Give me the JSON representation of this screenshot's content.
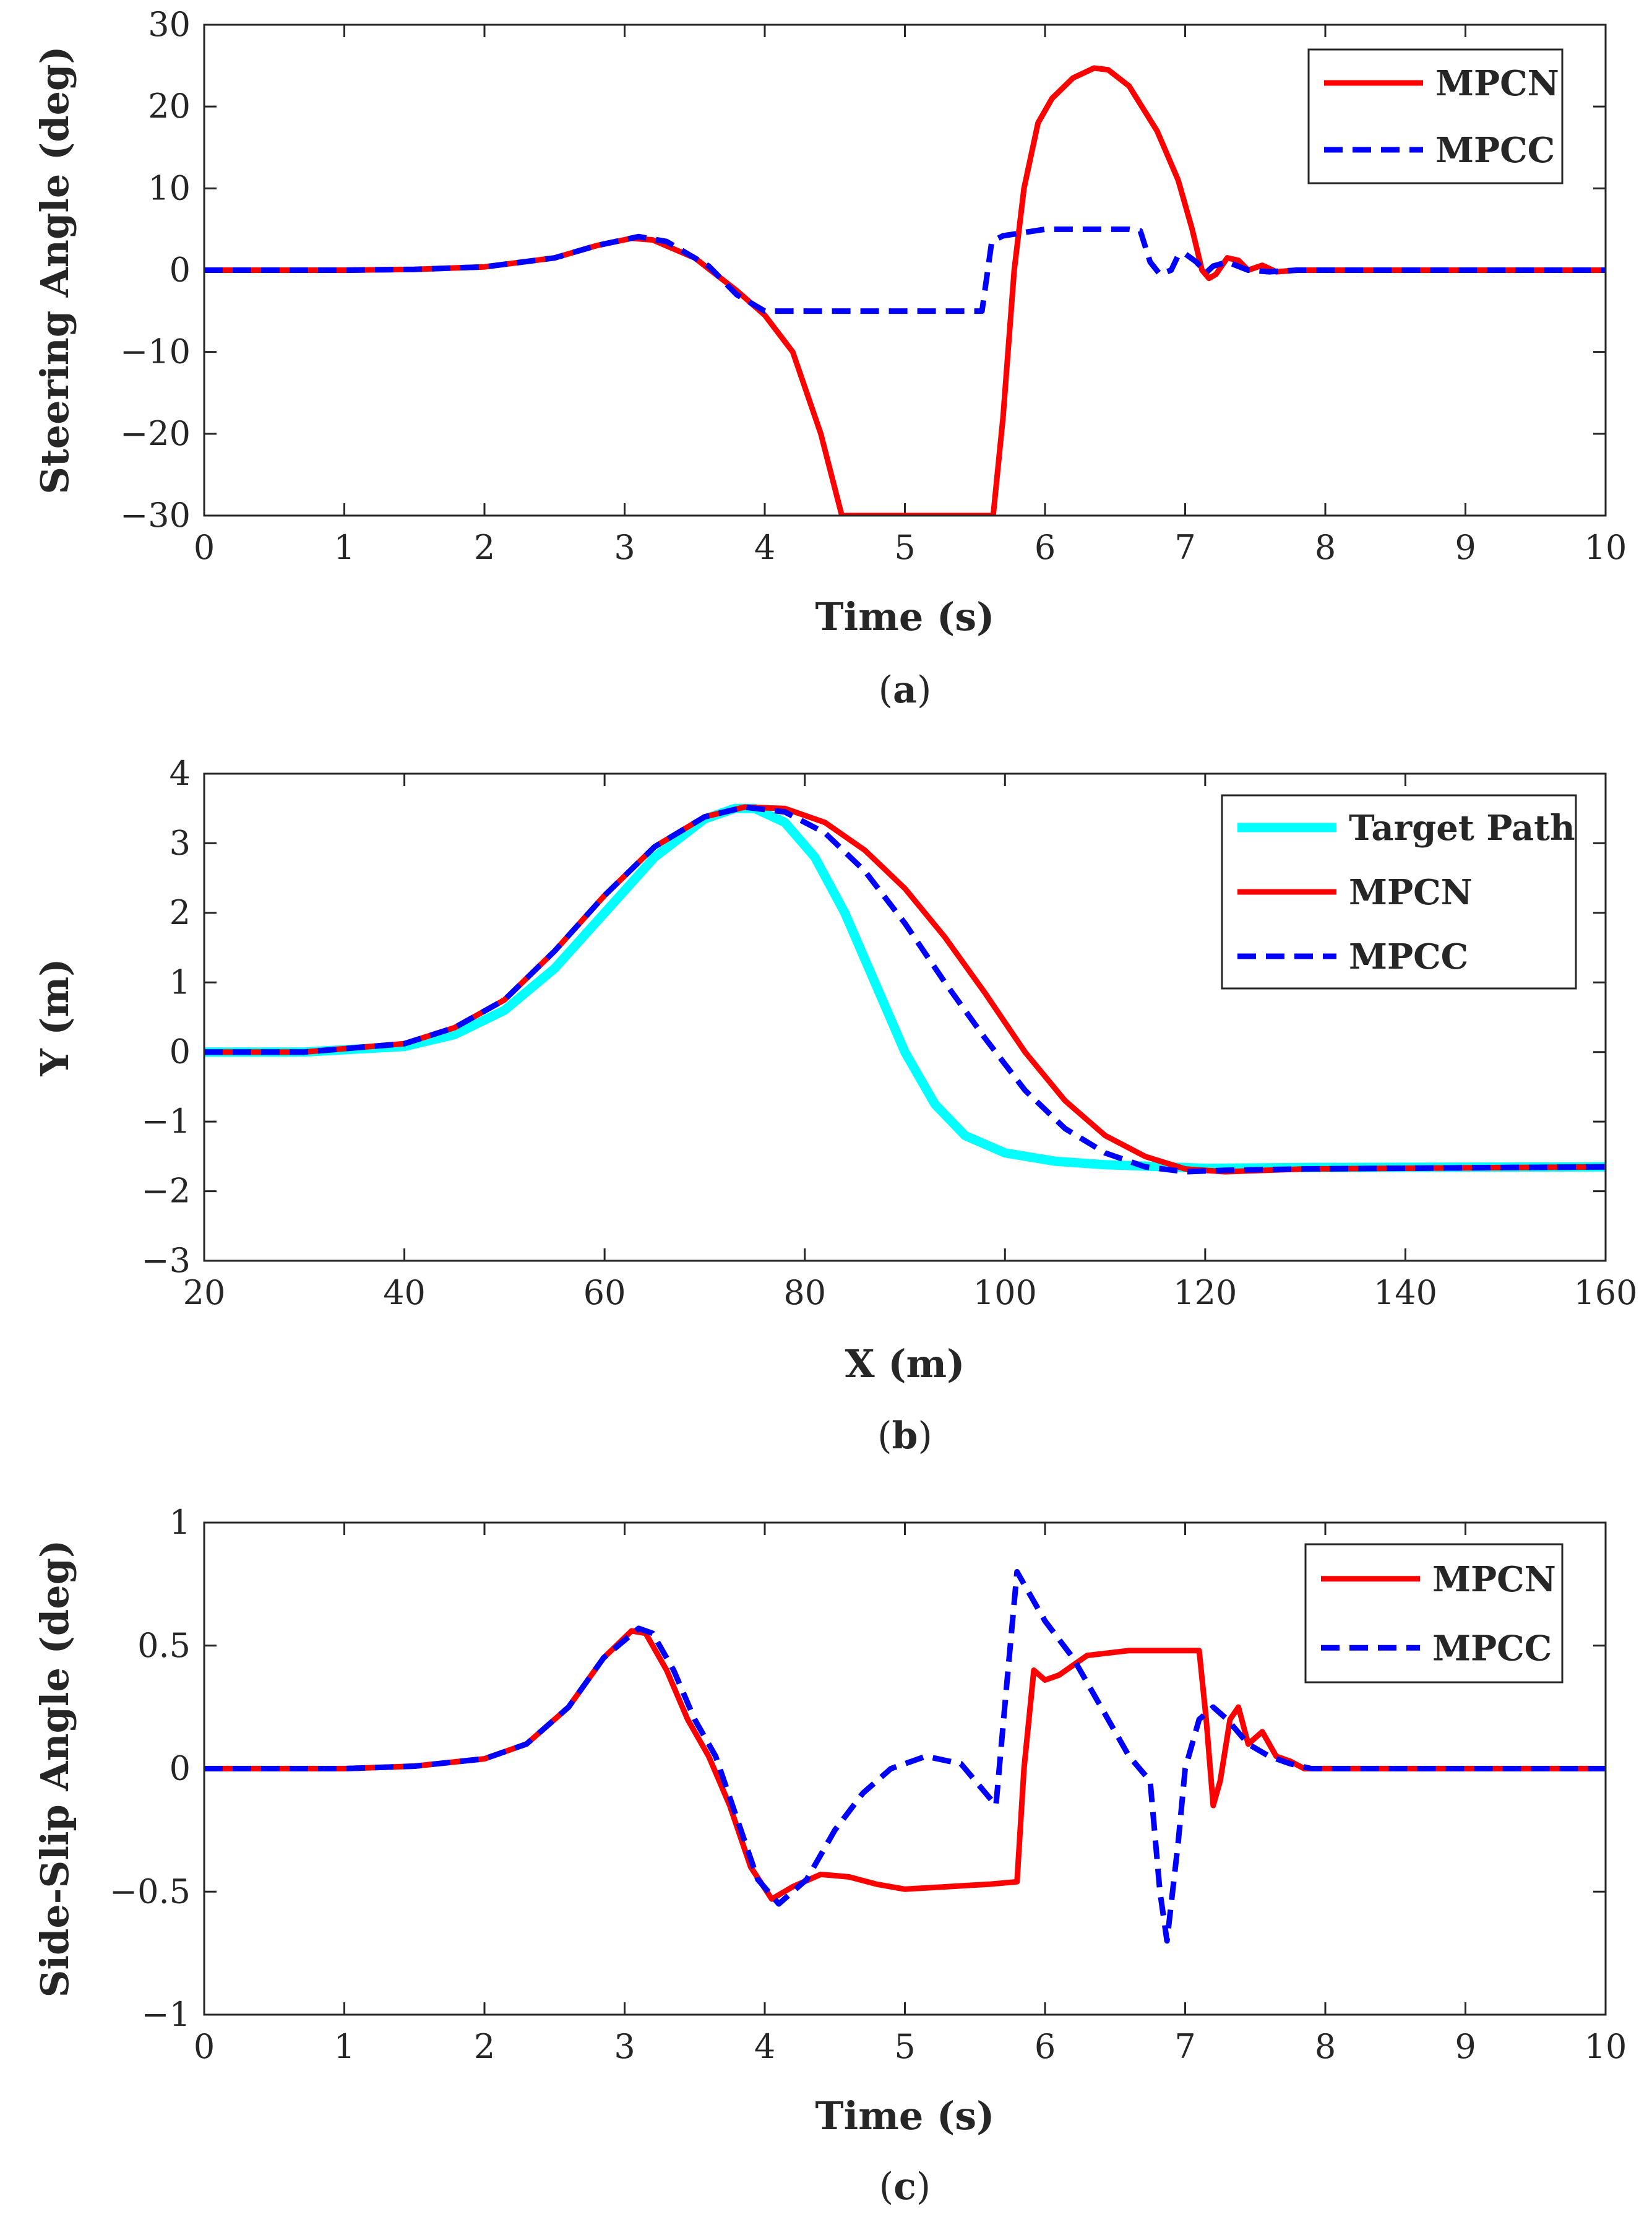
{
  "colors": {
    "MPCN": "#ff0000",
    "MPCC": "#0000ff",
    "Target Path": "#00ffff",
    "axis": "#262626"
  },
  "chart_data": [
    {
      "type": "line",
      "caption": "(a)",
      "caption_letter": "a",
      "xlabel": "Time (s)",
      "ylabel": "Steering Angle (deg)",
      "xlim": [
        0,
        10
      ],
      "ylim": [
        -30,
        30
      ],
      "xticks": [
        "0",
        "1",
        "2",
        "3",
        "4",
        "5",
        "6",
        "7",
        "8",
        "9",
        "10"
      ],
      "yticks": [
        "−30",
        "−20",
        "−10",
        "0",
        "10",
        "20",
        "30"
      ],
      "legend_position": "top-right",
      "grid": false,
      "series": [
        {
          "name": "MPCN",
          "style": "solid",
          "points": [
            [
              0,
              0
            ],
            [
              1,
              0
            ],
            [
              1.5,
              0.1
            ],
            [
              2,
              0.4
            ],
            [
              2.5,
              1.5
            ],
            [
              2.8,
              3
            ],
            [
              3.05,
              3.9
            ],
            [
              3.2,
              3.7
            ],
            [
              3.5,
              1.5
            ],
            [
              3.8,
              -2.5
            ],
            [
              4,
              -5.5
            ],
            [
              4.2,
              -10
            ],
            [
              4.4,
              -20
            ],
            [
              4.55,
              -30
            ],
            [
              5,
              -30
            ],
            [
              5.63,
              -30
            ],
            [
              5.7,
              -18
            ],
            [
              5.78,
              0
            ],
            [
              5.85,
              10
            ],
            [
              5.95,
              18
            ],
            [
              6.05,
              21
            ],
            [
              6.2,
              23.5
            ],
            [
              6.35,
              24.7
            ],
            [
              6.45,
              24.5
            ],
            [
              6.6,
              22.5
            ],
            [
              6.8,
              17
            ],
            [
              6.95,
              11
            ],
            [
              7.05,
              5
            ],
            [
              7.12,
              0
            ],
            [
              7.17,
              -1
            ],
            [
              7.22,
              -0.5
            ],
            [
              7.3,
              1.5
            ],
            [
              7.38,
              1.2
            ],
            [
              7.45,
              0
            ],
            [
              7.55,
              0.6
            ],
            [
              7.65,
              -0.2
            ],
            [
              7.8,
              0
            ],
            [
              10,
              0
            ]
          ]
        },
        {
          "name": "MPCC",
          "style": "dashed",
          "points": [
            [
              0,
              0
            ],
            [
              1,
              0
            ],
            [
              1.5,
              0.1
            ],
            [
              2,
              0.4
            ],
            [
              2.5,
              1.5
            ],
            [
              2.8,
              3
            ],
            [
              3.1,
              4.1
            ],
            [
              3.3,
              3.5
            ],
            [
              3.6,
              0.5
            ],
            [
              3.8,
              -3
            ],
            [
              4,
              -5
            ],
            [
              4.5,
              -5
            ],
            [
              5,
              -5
            ],
            [
              5.55,
              -5
            ],
            [
              5.62,
              3.5
            ],
            [
              5.7,
              4.2
            ],
            [
              6,
              5
            ],
            [
              6.6,
              5
            ],
            [
              6.68,
              4.8
            ],
            [
              6.75,
              1
            ],
            [
              6.82,
              -0.5
            ],
            [
              6.9,
              0
            ],
            [
              6.95,
              1.8
            ],
            [
              7.0,
              2
            ],
            [
              7.08,
              1
            ],
            [
              7.15,
              -0.3
            ],
            [
              7.2,
              0.5
            ],
            [
              7.3,
              1
            ],
            [
              7.45,
              0
            ],
            [
              7.6,
              -0.2
            ],
            [
              7.8,
              0
            ],
            [
              10,
              0
            ]
          ]
        }
      ]
    },
    {
      "type": "line",
      "caption": "(b)",
      "caption_letter": "b",
      "xlabel": "X (m)",
      "ylabel": "Y (m)",
      "xlim": [
        20,
        160
      ],
      "ylim": [
        -3,
        4
      ],
      "xticks": [
        "20",
        "40",
        "60",
        "80",
        "100",
        "120",
        "140",
        "160"
      ],
      "yticks": [
        "−3",
        "−2",
        "−1",
        "0",
        "1",
        "2",
        "3",
        "4"
      ],
      "legend_position": "top-right",
      "grid": false,
      "series": [
        {
          "name": "Target Path",
          "style": "solid",
          "points": [
            [
              20,
              0
            ],
            [
              30,
              0
            ],
            [
              40,
              0.08
            ],
            [
              45,
              0.25
            ],
            [
              50,
              0.6
            ],
            [
              55,
              1.2
            ],
            [
              60,
              2
            ],
            [
              65,
              2.8
            ],
            [
              70,
              3.35
            ],
            [
              73,
              3.5
            ],
            [
              75,
              3.5
            ],
            [
              78,
              3.3
            ],
            [
              81,
              2.8
            ],
            [
              84,
              2
            ],
            [
              87,
              1
            ],
            [
              90,
              0
            ],
            [
              93,
              -0.75
            ],
            [
              96,
              -1.2
            ],
            [
              100,
              -1.45
            ],
            [
              105,
              -1.57
            ],
            [
              110,
              -1.62
            ],
            [
              120,
              -1.67
            ],
            [
              130,
              -1.66
            ],
            [
              160,
              -1.65
            ]
          ]
        },
        {
          "name": "MPCN",
          "style": "solid",
          "points": [
            [
              20,
              0
            ],
            [
              30,
              0
            ],
            [
              40,
              0.12
            ],
            [
              45,
              0.35
            ],
            [
              50,
              0.75
            ],
            [
              55,
              1.45
            ],
            [
              60,
              2.25
            ],
            [
              65,
              2.95
            ],
            [
              70,
              3.38
            ],
            [
              74,
              3.52
            ],
            [
              78,
              3.5
            ],
            [
              82,
              3.3
            ],
            [
              86,
              2.9
            ],
            [
              90,
              2.35
            ],
            [
              94,
              1.65
            ],
            [
              98,
              0.85
            ],
            [
              102,
              0
            ],
            [
              106,
              -0.7
            ],
            [
              110,
              -1.2
            ],
            [
              114,
              -1.5
            ],
            [
              118,
              -1.68
            ],
            [
              122,
              -1.72
            ],
            [
              130,
              -1.68
            ],
            [
              160,
              -1.65
            ]
          ]
        },
        {
          "name": "MPCC",
          "style": "dashed",
          "points": [
            [
              20,
              0
            ],
            [
              30,
              0
            ],
            [
              40,
              0.12
            ],
            [
              45,
              0.35
            ],
            [
              50,
              0.75
            ],
            [
              55,
              1.45
            ],
            [
              60,
              2.25
            ],
            [
              65,
              2.95
            ],
            [
              70,
              3.38
            ],
            [
              74,
              3.52
            ],
            [
              78,
              3.45
            ],
            [
              82,
              3.15
            ],
            [
              86,
              2.6
            ],
            [
              90,
              1.85
            ],
            [
              94,
              1.0
            ],
            [
              98,
              0.2
            ],
            [
              102,
              -0.55
            ],
            [
              106,
              -1.1
            ],
            [
              110,
              -1.45
            ],
            [
              114,
              -1.65
            ],
            [
              118,
              -1.72
            ],
            [
              122,
              -1.7
            ],
            [
              130,
              -1.68
            ],
            [
              160,
              -1.65
            ]
          ]
        }
      ]
    },
    {
      "type": "line",
      "caption": "(c)",
      "caption_letter": "c",
      "xlabel": "Time (s)",
      "ylabel": "Side-Slip Angle (deg)",
      "xlim": [
        0,
        10
      ],
      "ylim": [
        -1,
        1
      ],
      "xticks": [
        "0",
        "1",
        "2",
        "3",
        "4",
        "5",
        "6",
        "7",
        "8",
        "9",
        "10"
      ],
      "yticks": [
        "−1",
        "−0.5",
        "0",
        "0.5",
        "1"
      ],
      "legend_position": "top-right",
      "grid": false,
      "series": [
        {
          "name": "MPCN",
          "style": "solid",
          "points": [
            [
              0,
              0
            ],
            [
              1,
              0
            ],
            [
              1.5,
              0.01
            ],
            [
              2,
              0.04
            ],
            [
              2.3,
              0.1
            ],
            [
              2.6,
              0.25
            ],
            [
              2.85,
              0.45
            ],
            [
              3.05,
              0.56
            ],
            [
              3.15,
              0.55
            ],
            [
              3.3,
              0.4
            ],
            [
              3.45,
              0.2
            ],
            [
              3.6,
              0.05
            ],
            [
              3.75,
              -0.15
            ],
            [
              3.9,
              -0.4
            ],
            [
              4.05,
              -0.53
            ],
            [
              4.2,
              -0.48
            ],
            [
              4.4,
              -0.43
            ],
            [
              4.6,
              -0.44
            ],
            [
              4.8,
              -0.47
            ],
            [
              5.0,
              -0.49
            ],
            [
              5.3,
              -0.48
            ],
            [
              5.6,
              -0.47
            ],
            [
              5.8,
              -0.46
            ],
            [
              5.85,
              0
            ],
            [
              5.92,
              0.4
            ],
            [
              6.0,
              0.36
            ],
            [
              6.1,
              0.38
            ],
            [
              6.3,
              0.46
            ],
            [
              6.6,
              0.48
            ],
            [
              7.0,
              0.48
            ],
            [
              7.1,
              0.48
            ],
            [
              7.15,
              0.2
            ],
            [
              7.2,
              -0.15
            ],
            [
              7.25,
              -0.05
            ],
            [
              7.32,
              0.2
            ],
            [
              7.38,
              0.25
            ],
            [
              7.45,
              0.1
            ],
            [
              7.55,
              0.15
            ],
            [
              7.65,
              0.05
            ],
            [
              7.75,
              0.03
            ],
            [
              7.85,
              0
            ],
            [
              10,
              0
            ]
          ]
        },
        {
          "name": "MPCC",
          "style": "dashed",
          "points": [
            [
              0,
              0
            ],
            [
              1,
              0
            ],
            [
              1.5,
              0.01
            ],
            [
              2,
              0.04
            ],
            [
              2.3,
              0.1
            ],
            [
              2.6,
              0.25
            ],
            [
              2.85,
              0.45
            ],
            [
              3.1,
              0.57
            ],
            [
              3.2,
              0.55
            ],
            [
              3.35,
              0.4
            ],
            [
              3.5,
              0.2
            ],
            [
              3.65,
              0.05
            ],
            [
              3.8,
              -0.2
            ],
            [
              3.95,
              -0.45
            ],
            [
              4.1,
              -0.55
            ],
            [
              4.3,
              -0.45
            ],
            [
              4.5,
              -0.25
            ],
            [
              4.7,
              -0.1
            ],
            [
              4.9,
              0
            ],
            [
              5.15,
              0.05
            ],
            [
              5.4,
              0.02
            ],
            [
              5.65,
              -0.15
            ],
            [
              5.72,
              0.3
            ],
            [
              5.8,
              0.8
            ],
            [
              5.9,
              0.7
            ],
            [
              6.0,
              0.6
            ],
            [
              6.2,
              0.45
            ],
            [
              6.4,
              0.25
            ],
            [
              6.6,
              0.05
            ],
            [
              6.75,
              -0.05
            ],
            [
              6.82,
              -0.5
            ],
            [
              6.87,
              -0.7
            ],
            [
              6.95,
              -0.3
            ],
            [
              7.0,
              0
            ],
            [
              7.1,
              0.2
            ],
            [
              7.2,
              0.25
            ],
            [
              7.3,
              0.2
            ],
            [
              7.45,
              0.1
            ],
            [
              7.6,
              0.05
            ],
            [
              7.75,
              0.02
            ],
            [
              7.9,
              0
            ],
            [
              10,
              0
            ]
          ]
        }
      ]
    }
  ]
}
